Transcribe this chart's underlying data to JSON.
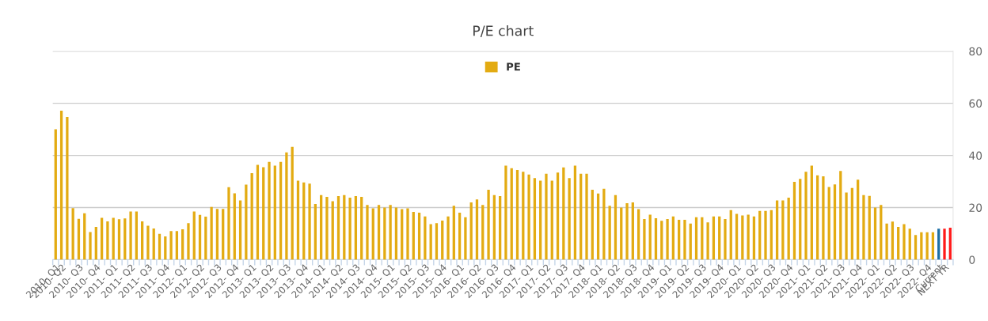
{
  "chart_data": {
    "type": "bar",
    "title": "P/E chart",
    "categories": [
      "2010- Q1",
      "2010- Q2",
      null,
      null,
      "2010- Q3",
      null,
      null,
      "2010- Q4",
      null,
      null,
      "2011- Q1",
      null,
      null,
      "2011- Q2",
      null,
      null,
      "2011- Q3",
      null,
      null,
      "2011- Q4",
      null,
      null,
      "2012- Q1",
      null,
      null,
      "2012- Q2",
      null,
      null,
      "2012- Q3",
      null,
      null,
      "2012- Q4",
      null,
      null,
      "2013- Q1",
      null,
      null,
      "2013- Q2",
      null,
      null,
      "2013- Q3",
      null,
      null,
      "2013- Q4",
      null,
      null,
      "2014- Q1",
      null,
      null,
      "2014- Q2",
      null,
      null,
      "2014- Q3",
      null,
      null,
      "2014- Q4",
      null,
      null,
      "2015- Q1",
      null,
      null,
      "2015- Q2",
      null,
      null,
      "2015- Q3",
      null,
      null,
      "2015- Q4",
      null,
      null,
      "2016- Q1",
      null,
      null,
      "2016- Q2",
      null,
      null,
      "2016- Q3",
      null,
      null,
      "2016- Q4",
      null,
      null,
      "2017- Q1",
      null,
      null,
      "2017- Q2",
      null,
      null,
      "2017- Q3",
      null,
      null,
      "2017- Q4",
      null,
      null,
      "2018- Q1",
      null,
      null,
      "2018- Q2",
      null,
      null,
      "2018- Q3",
      null,
      null,
      "2018- Q4",
      null,
      null,
      "2019- Q1",
      null,
      null,
      "2019- Q2",
      null,
      null,
      "2019- Q3",
      null,
      null,
      "2019- Q4",
      null,
      null,
      "2020- Q1",
      null,
      null,
      "2020- Q2",
      null,
      null,
      "2020- Q3",
      null,
      null,
      "2020- Q4",
      null,
      null,
      "2021- Q1",
      null,
      null,
      "2021- Q2",
      null,
      null,
      "2021- Q3",
      null,
      null,
      "2021- Q4",
      null,
      null,
      "2022- Q1",
      null,
      null,
      "2022- Q2",
      null,
      null,
      "2022- Q3",
      null,
      null,
      "2022- Q4",
      null,
      "Current",
      "NEXT YR",
      null
    ],
    "series": [
      {
        "name": "PE",
        "color": "#e3ab12",
        "colors": [
          "#e3ab12",
          "#e3ab12",
          "#e3ab12",
          "#e3ab12",
          "#e3ab12",
          "#e3ab12",
          "#e3ab12",
          "#e3ab12",
          "#e3ab12",
          "#e3ab12",
          "#e3ab12",
          "#e3ab12",
          "#e3ab12",
          "#e3ab12",
          "#e3ab12",
          "#e3ab12",
          "#e3ab12",
          "#e3ab12",
          "#e3ab12",
          "#e3ab12",
          "#e3ab12",
          "#e3ab12",
          "#e3ab12",
          "#e3ab12",
          "#e3ab12",
          "#e3ab12",
          "#e3ab12",
          "#e3ab12",
          "#e3ab12",
          "#e3ab12",
          "#e3ab12",
          "#e3ab12",
          "#e3ab12",
          "#e3ab12",
          "#e3ab12",
          "#e3ab12",
          "#e3ab12",
          "#e3ab12",
          "#e3ab12",
          "#e3ab12",
          "#e3ab12",
          "#e3ab12",
          "#e3ab12",
          "#e3ab12",
          "#e3ab12",
          "#e3ab12",
          "#e3ab12",
          "#e3ab12",
          "#e3ab12",
          "#e3ab12",
          "#e3ab12",
          "#e3ab12",
          "#e3ab12",
          "#e3ab12",
          "#e3ab12",
          "#e3ab12",
          "#e3ab12",
          "#e3ab12",
          "#e3ab12",
          "#e3ab12",
          "#e3ab12",
          "#e3ab12",
          "#e3ab12",
          "#e3ab12",
          "#e3ab12",
          "#e3ab12",
          "#e3ab12",
          "#e3ab12",
          "#e3ab12",
          "#e3ab12",
          "#e3ab12",
          "#e3ab12",
          "#e3ab12",
          "#e3ab12",
          "#e3ab12",
          "#e3ab12",
          "#e3ab12",
          "#e3ab12",
          "#e3ab12",
          "#e3ab12",
          "#e3ab12",
          "#e3ab12",
          "#e3ab12",
          "#e3ab12",
          "#e3ab12",
          "#e3ab12",
          "#e3ab12",
          "#e3ab12",
          "#e3ab12",
          "#e3ab12",
          "#e3ab12",
          "#e3ab12",
          "#e3ab12",
          "#e3ab12",
          "#e3ab12",
          "#e3ab12",
          "#e3ab12",
          "#e3ab12",
          "#e3ab12",
          "#e3ab12",
          "#e3ab12",
          "#e3ab12",
          "#e3ab12",
          "#e3ab12",
          "#e3ab12",
          "#e3ab12",
          "#e3ab12",
          "#e3ab12",
          "#e3ab12",
          "#e3ab12",
          "#e3ab12",
          "#e3ab12",
          "#e3ab12",
          "#e3ab12",
          "#e3ab12",
          "#e3ab12",
          "#e3ab12",
          "#e3ab12",
          "#e3ab12",
          "#e3ab12",
          "#e3ab12",
          "#e3ab12",
          "#e3ab12",
          "#e3ab12",
          "#e3ab12",
          "#e3ab12",
          "#e3ab12",
          "#e3ab12",
          "#e3ab12",
          "#e3ab12",
          "#e3ab12",
          "#e3ab12",
          "#e3ab12",
          "#e3ab12",
          "#e3ab12",
          "#e3ab12",
          "#e3ab12",
          "#e3ab12",
          "#e3ab12",
          "#e3ab12",
          "#e3ab12",
          "#e3ab12",
          "#e3ab12",
          "#e3ab12",
          "#e3ab12",
          "#e3ab12",
          "#e3ab12",
          "#e3ab12",
          "#e3ab12",
          "#e3ab12",
          "#e3ab12",
          "#e3ab12",
          "#e3ab12",
          "#1d6fa5",
          "#ff1a1a",
          "#ff1a1a"
        ],
        "values": [
          50.0,
          57.2,
          54.7,
          19.8,
          15.7,
          17.8,
          10.6,
          12.6,
          16.1,
          14.7,
          16.1,
          15.5,
          15.8,
          18.5,
          18.5,
          14.7,
          13.0,
          12.0,
          9.9,
          8.9,
          11.0,
          11.0,
          11.7,
          14.0,
          18.5,
          17.2,
          16.5,
          20.2,
          19.5,
          19.5,
          27.8,
          25.5,
          22.7,
          28.8,
          33.2,
          36.4,
          35.5,
          37.5,
          36.1,
          37.5,
          41.2,
          43.3,
          30.3,
          29.6,
          29.2,
          21.4,
          24.8,
          24.1,
          22.4,
          24.4,
          24.8,
          23.8,
          24.4,
          24.1,
          21.0,
          19.7,
          21.0,
          20.0,
          21.0,
          20.0,
          19.4,
          19.7,
          18.3,
          18.0,
          16.6,
          13.6,
          14.0,
          15.0,
          16.6,
          20.7,
          18.0,
          16.3,
          22.0,
          23.1,
          21.0,
          26.8,
          24.8,
          24.4,
          36.1,
          35.1,
          34.4,
          33.7,
          32.7,
          31.3,
          30.3,
          33.0,
          30.3,
          33.4,
          35.4,
          31.3,
          36.1,
          33.0,
          33.0,
          26.8,
          25.4,
          27.2,
          20.7,
          24.8,
          20.0,
          21.7,
          22.0,
          19.4,
          15.6,
          17.3,
          15.9,
          14.9,
          15.6,
          16.6,
          15.3,
          15.3,
          13.9,
          16.3,
          16.3,
          14.3,
          16.6,
          16.6,
          15.6,
          19.0,
          17.6,
          17.0,
          17.3,
          16.6,
          18.7,
          18.7,
          19.0,
          22.7,
          22.7,
          23.8,
          29.9,
          31.0,
          33.7,
          36.1,
          32.4,
          32.0,
          27.9,
          28.9,
          34.0,
          25.8,
          27.5,
          30.7,
          24.8,
          24.5,
          20.0,
          21.0,
          13.9,
          14.6,
          12.6,
          13.6,
          11.9,
          9.5,
          10.5,
          10.5,
          10.5,
          11.9,
          11.9,
          12.3
        ]
      }
    ],
    "ylim": [
      0,
      80
    ],
    "yticks": [
      0,
      20,
      40,
      60,
      80
    ],
    "grid": "y",
    "legend": "top"
  }
}
